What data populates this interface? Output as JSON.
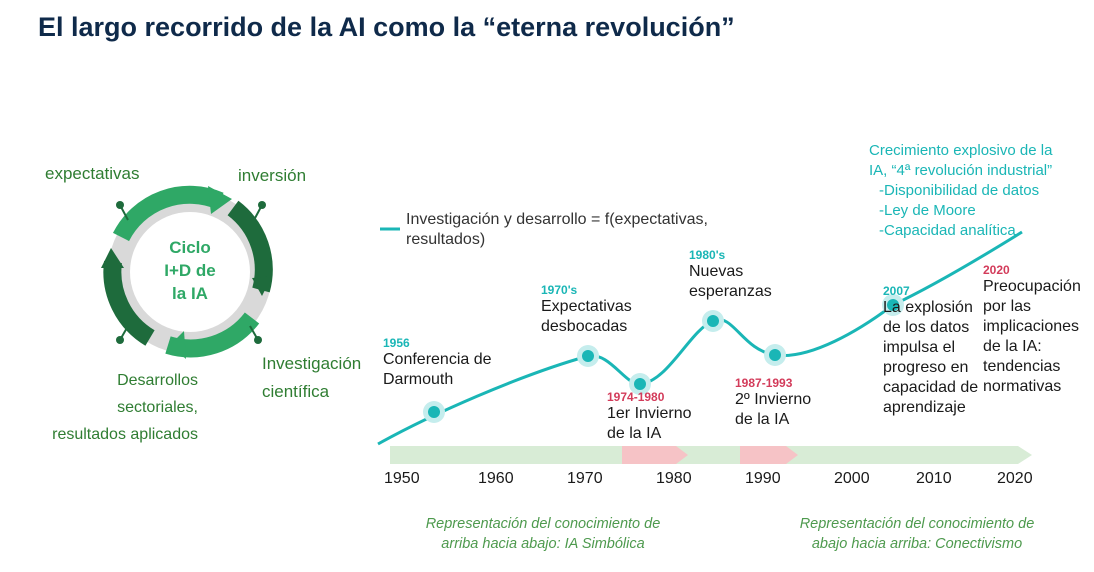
{
  "title": "El largo recorrido de la AI como  la “eterna revolución”",
  "cycle": {
    "center": [
      "Ciclo",
      "I+D de",
      "la IA"
    ],
    "expectativas": "expectativas",
    "inversion": "inversión",
    "investigacion": [
      "Investigación",
      "científica"
    ],
    "desarrollos": [
      "Desarrollos",
      "sectoriales,",
      "resultados aplicados"
    ]
  },
  "legend": [
    "Investigación y desarrollo = f(expectativas,",
    "resultados)"
  ],
  "events": {
    "e1956": {
      "year": "1956",
      "text": [
        "Conferencia de",
        "Darmouth"
      ]
    },
    "e1970": {
      "year": "1970's",
      "text": [
        "Expectativas",
        "desbocadas"
      ]
    },
    "e1974": {
      "year": "1974-1980",
      "text": [
        "1er Invierno",
        "de la IA"
      ]
    },
    "e1980": {
      "year": "1980's",
      "text": [
        "Nuevas",
        "esperanzas"
      ]
    },
    "e1987": {
      "year": "1987-1993",
      "text": [
        "2º Invierno",
        "de la IA"
      ]
    },
    "e2007": {
      "year": "2007",
      "text": [
        "La explosión",
        "de los datos",
        "impulsa el",
        "progreso en",
        "capacidad de",
        "aprendizaje"
      ]
    },
    "e2020": {
      "year": "2020",
      "text": [
        "Preocupación",
        "por las",
        "implicaciones",
        "de la IA:",
        "tendencias",
        "normativas"
      ]
    },
    "growth": [
      "Crecimiento explosivo de la",
      "IA,  “4ª revolución industrial”",
      "-Disponibilidad de datos",
      "-Ley de Moore",
      "-Capacidad analítica"
    ]
  },
  "axis": {
    "ticks": [
      "1950",
      "1960",
      "1970",
      "1980",
      "1990",
      "2000",
      "2010",
      "2020"
    ]
  },
  "bottom": {
    "left": [
      "Representación del conocimiento de",
      "arriba hacia abajo: IA Simbólica"
    ],
    "right": [
      "Representación del conocimiento de",
      "abajo hacia arriba: Conectivismo"
    ]
  },
  "colors": {
    "title": "#0f2a4a",
    "teal": "#1ab6b6",
    "winter": "#d33b5a",
    "green_dark": "#1e6b3c",
    "green_light": "#2fa866"
  }
}
